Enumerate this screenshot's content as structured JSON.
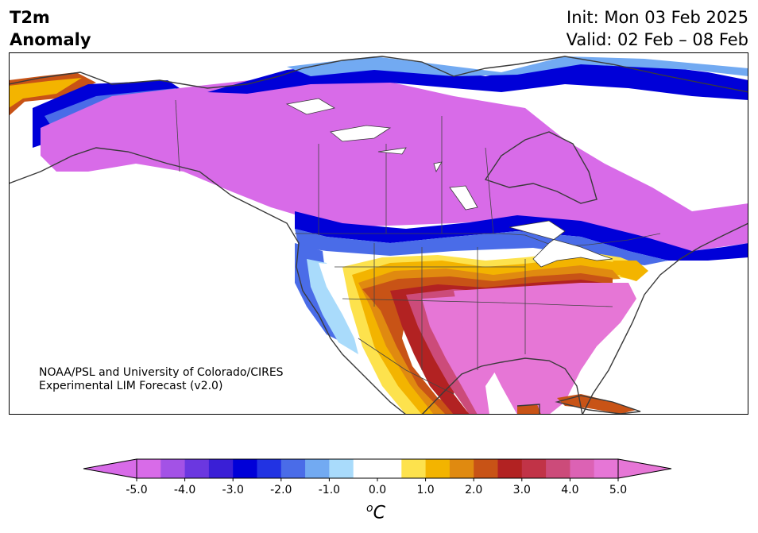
{
  "header": {
    "title_line1": "T2m",
    "title_line2": "Anomaly",
    "init": "Init: Mon 03 Feb 2025",
    "valid": "Valid: 02 Feb – 08 Feb"
  },
  "credit": {
    "line1": "NOAA/PSL and University of Colorado/CIRES",
    "line2": "Experimental LIM Forecast (v2.0)"
  },
  "colorbar": {
    "unit_base": "C",
    "unit_sup": "o",
    "tick_labels": [
      "-5.0",
      "-4.0",
      "-3.0",
      "-2.0",
      "-1.0",
      "0.0",
      "1.0",
      "2.0",
      "3.0",
      "4.0",
      "5.0"
    ],
    "colors": [
      "#d86be8",
      "#a352e6",
      "#6b37e0",
      "#3a1fd6",
      "#0000d8",
      "#2233e3",
      "#4a6ce8",
      "#72aaf2",
      "#a9dbfb",
      "#ffffff",
      "#ffffff",
      "#fde24d",
      "#f3b400",
      "#e08a10",
      "#c85316",
      "#b22222",
      "#c13347",
      "#cc4b7a",
      "#dc62b4",
      "#e676d6"
    ],
    "under_color": "#d86be8",
    "over_color": "#e676d6"
  }
}
